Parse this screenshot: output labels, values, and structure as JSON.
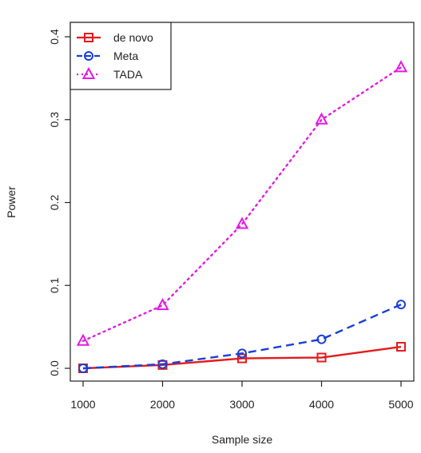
{
  "chart_data": {
    "type": "line",
    "xlabel": "Sample size",
    "ylabel": "Power",
    "x": [
      1000,
      2000,
      3000,
      4000,
      5000
    ],
    "xticks": [
      "1000",
      "2000",
      "3000",
      "4000",
      "5000"
    ],
    "yticks": [
      "0.0",
      "0.1",
      "0.2",
      "0.3",
      "0.4"
    ],
    "xlim": [
      1000,
      5000
    ],
    "ylim": [
      0,
      0.4
    ],
    "grid": false,
    "legend_position": "top-left",
    "series": [
      {
        "name": "de novo",
        "values": [
          0.0,
          0.004,
          0.012,
          0.013,
          0.026
        ],
        "color": "#e41a1c",
        "line_style": "solid",
        "marker": "square"
      },
      {
        "name": "Meta",
        "values": [
          0.0,
          0.005,
          0.018,
          0.035,
          0.077
        ],
        "color": "#1a3fd6",
        "line_style": "dashed",
        "marker": "circle"
      },
      {
        "name": "TADA",
        "values": [
          0.033,
          0.076,
          0.174,
          0.3,
          0.363
        ],
        "color": "#e41ae4",
        "line_style": "dotted",
        "marker": "triangle"
      }
    ]
  }
}
